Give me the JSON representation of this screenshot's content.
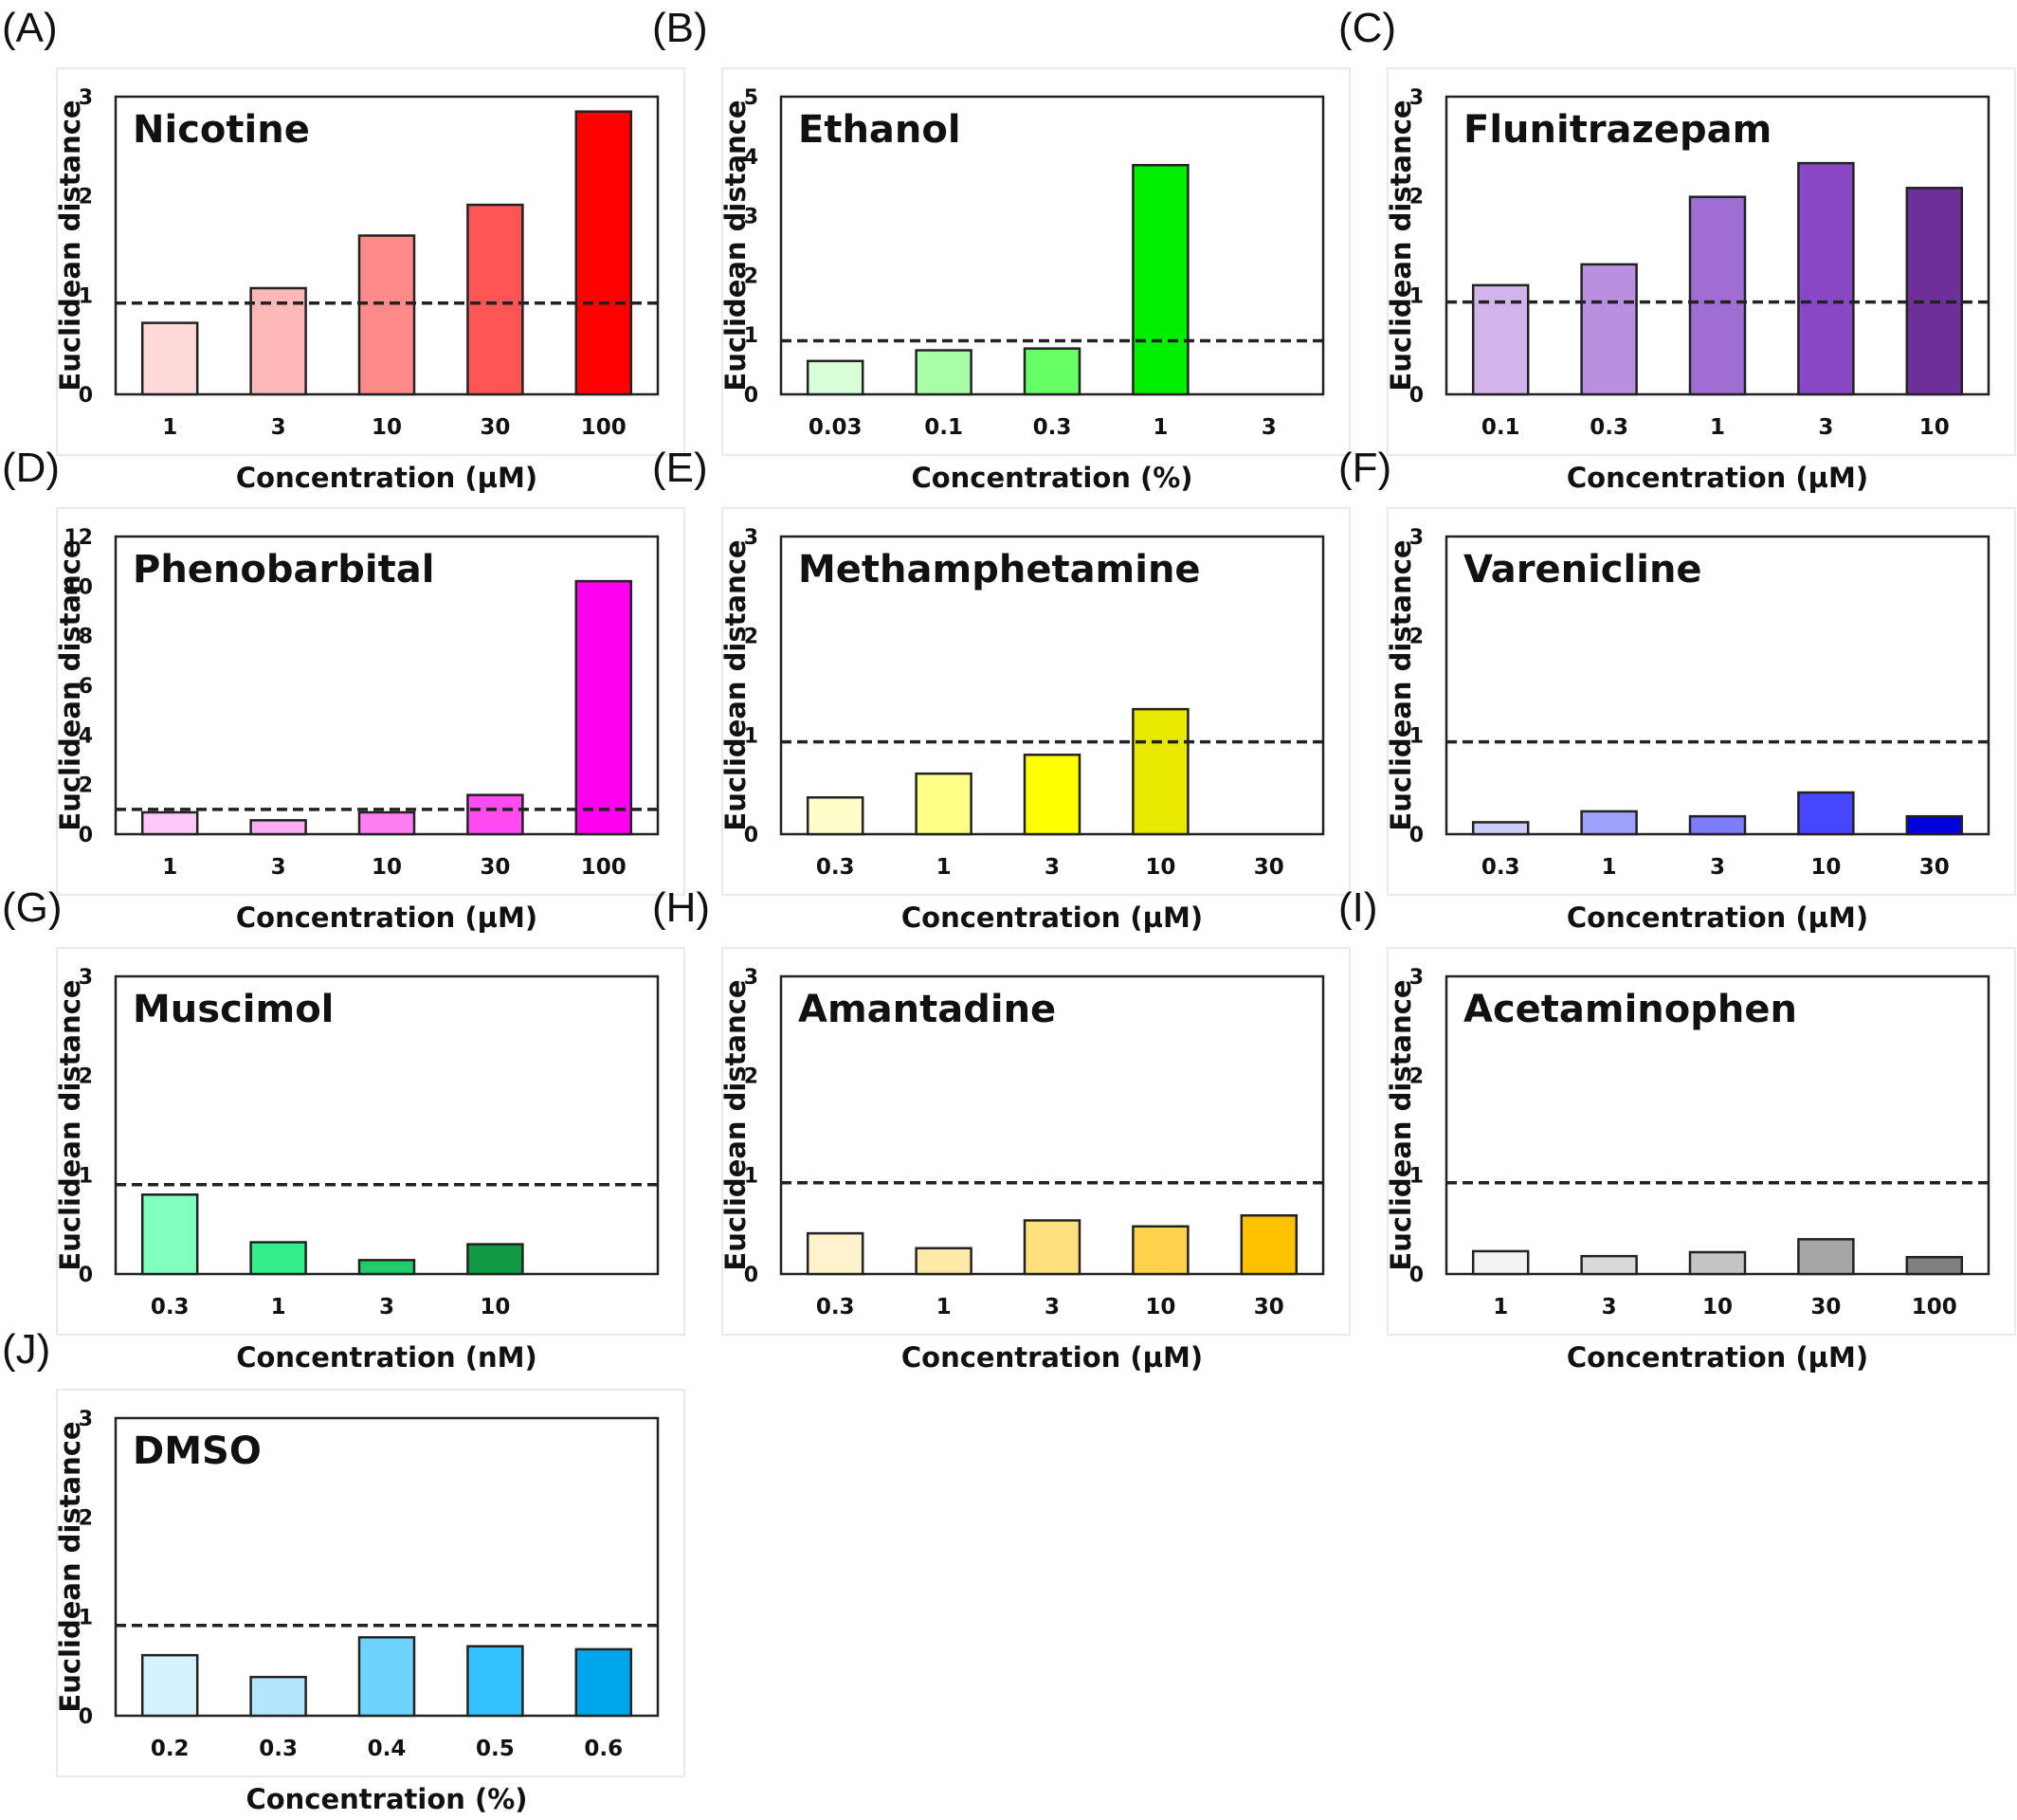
{
  "chart_data": [
    {
      "panel": "(A)",
      "type": "bar",
      "title": "Nicotine",
      "ylabel": "Euclidean distance",
      "xlabel": "Concentration (µM)",
      "categories": [
        "1",
        "3",
        "10",
        "30",
        "100"
      ],
      "values": [
        0.72,
        1.07,
        1.6,
        1.91,
        2.85
      ],
      "colors": [
        "#ffd9d9",
        "#ffb8b8",
        "#ff8a8a",
        "#ff5555",
        "#ff0000"
      ],
      "ylim": [
        0,
        3
      ],
      "yticks": [
        "0",
        "1",
        "2",
        "3"
      ],
      "threshold": 0.92
    },
    {
      "panel": "(B)",
      "type": "bar",
      "title": "Ethanol",
      "ylabel": "Euclidean distance",
      "xlabel": "Concentration (%)",
      "categories": [
        "0.03",
        "0.1",
        "0.3",
        "1",
        "3"
      ],
      "values": [
        0.56,
        0.74,
        0.77,
        3.85,
        null
      ],
      "colors": [
        "#d8ffd8",
        "#a8ffa8",
        "#66ff66",
        "#00ee00",
        "#00aa00"
      ],
      "ylim": [
        0,
        5
      ],
      "yticks": [
        "0",
        "1",
        "2",
        "3",
        "4",
        "5"
      ],
      "threshold": 0.9
    },
    {
      "panel": "(C)",
      "type": "bar",
      "title": "Flunitrazepam",
      "ylabel": "Euclidean distance",
      "xlabel": "Concentration (µM)",
      "categories": [
        "0.1",
        "0.3",
        "1",
        "3",
        "10"
      ],
      "values": [
        1.1,
        1.31,
        1.99,
        2.33,
        2.08
      ],
      "colors": [
        "#d2b4ea",
        "#b98fdf",
        "#a06ed2",
        "#8848c6",
        "#6f2f99"
      ],
      "ylim": [
        0,
        3
      ],
      "yticks": [
        "0",
        "1",
        "2",
        "3"
      ],
      "threshold": 0.93
    },
    {
      "panel": "(D)",
      "type": "bar",
      "title": "Phenobarbital",
      "ylabel": "Euclidean distance",
      "xlabel": "Concentration (µM)",
      "categories": [
        "1",
        "3",
        "10",
        "30",
        "100"
      ],
      "values": [
        0.88,
        0.56,
        0.88,
        1.58,
        10.2
      ],
      "colors": [
        "#ffc8f8",
        "#ffaef6",
        "#ff7ff3",
        "#ff4cf0",
        "#ff00ee"
      ],
      "ylim": [
        0,
        12
      ],
      "yticks": [
        "0",
        "2",
        "4",
        "6",
        "8",
        "10",
        "12"
      ],
      "threshold": 1.0
    },
    {
      "panel": "(E)",
      "type": "bar",
      "title": "Methamphetamine",
      "ylabel": "Euclidean distance",
      "xlabel": "Concentration (µM)",
      "categories": [
        "0.3",
        "1",
        "3",
        "10",
        "30"
      ],
      "values": [
        0.37,
        0.61,
        0.8,
        1.26,
        null
      ],
      "colors": [
        "#ffffcc",
        "#ffff88",
        "#ffff00",
        "#e8e800",
        "#cccc00"
      ],
      "ylim": [
        0,
        3
      ],
      "yticks": [
        "0",
        "1",
        "2",
        "3"
      ],
      "threshold": 0.93
    },
    {
      "panel": "(F)",
      "type": "bar",
      "title": "Varenicline",
      "ylabel": "Euclidean distance",
      "xlabel": "Concentration (µM)",
      "categories": [
        "0.3",
        "1",
        "3",
        "10",
        "30"
      ],
      "values": [
        0.12,
        0.23,
        0.18,
        0.42,
        0.18
      ],
      "colors": [
        "#ccccff",
        "#a0a0ff",
        "#7c7cff",
        "#4646ff",
        "#0000dd"
      ],
      "ylim": [
        0,
        3
      ],
      "yticks": [
        "0",
        "1",
        "2",
        "3"
      ],
      "threshold": 0.93
    },
    {
      "panel": "(G)",
      "type": "bar",
      "title": "Muscimol",
      "ylabel": "Euclidean distance",
      "xlabel": "Concentration (nM)",
      "categories": [
        "0.3",
        "1",
        "3",
        "10",
        ""
      ],
      "values": [
        0.8,
        0.32,
        0.14,
        0.3,
        null
      ],
      "colors": [
        "#80ffbf",
        "#33ee88",
        "#22cc66",
        "#119944",
        "#119944"
      ],
      "ylim": [
        0,
        3
      ],
      "yticks": [
        "0",
        "1",
        "2",
        "3"
      ],
      "threshold": 0.9
    },
    {
      "panel": "(H)",
      "type": "bar",
      "title": "Amantadine",
      "ylabel": "Euclidean distance",
      "xlabel": "Concentration (µM)",
      "categories": [
        "0.3",
        "1",
        "3",
        "10",
        "30"
      ],
      "values": [
        0.41,
        0.26,
        0.54,
        0.48,
        0.59
      ],
      "colors": [
        "#fff2cc",
        "#ffe9a6",
        "#ffe07f",
        "#ffd24d",
        "#ffc000"
      ],
      "ylim": [
        0,
        3
      ],
      "yticks": [
        "0",
        "1",
        "2",
        "3"
      ],
      "threshold": 0.92
    },
    {
      "panel": "(I)",
      "type": "bar",
      "title": "Acetaminophen",
      "ylabel": "Euclidean distance",
      "xlabel": "Concentration (µM)",
      "categories": [
        "1",
        "3",
        "10",
        "30",
        "100"
      ],
      "values": [
        0.23,
        0.18,
        0.22,
        0.35,
        0.17
      ],
      "colors": [
        "#f2f2f2",
        "#d9d9d9",
        "#c4c4c4",
        "#a6a6a6",
        "#808080"
      ],
      "ylim": [
        0,
        3
      ],
      "yticks": [
        "0",
        "1",
        "2",
        "3"
      ],
      "threshold": 0.92
    },
    {
      "panel": "(J)",
      "type": "bar",
      "title": "DMSO",
      "ylabel": "Euclidean distance",
      "xlabel": "Concentration (%)",
      "categories": [
        "0.2",
        "0.3",
        "0.4",
        "0.5",
        "0.6"
      ],
      "values": [
        0.61,
        0.39,
        0.79,
        0.7,
        0.67
      ],
      "colors": [
        "#d6f2ff",
        "#b4e6ff",
        "#6ed4ff",
        "#33c1ff",
        "#00a6ea"
      ],
      "ylim": [
        0,
        3
      ],
      "yticks": [
        "0",
        "1",
        "2",
        "3"
      ],
      "threshold": 0.91
    }
  ]
}
